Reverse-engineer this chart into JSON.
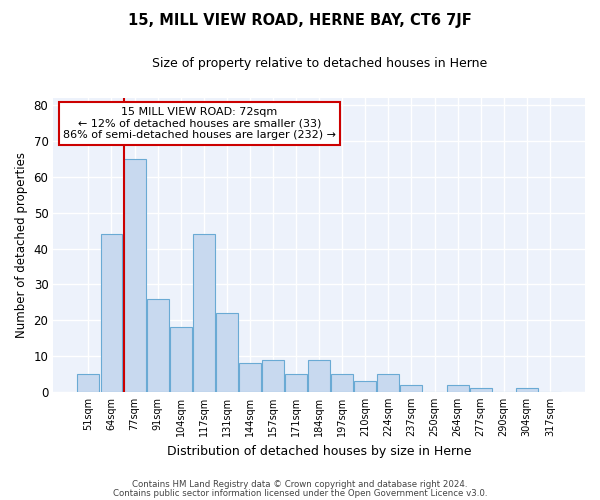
{
  "title": "15, MILL VIEW ROAD, HERNE BAY, CT6 7JF",
  "subtitle": "Size of property relative to detached houses in Herne",
  "xlabel": "Distribution of detached houses by size in Herne",
  "ylabel": "Number of detached properties",
  "bar_labels": [
    "51sqm",
    "64sqm",
    "77sqm",
    "91sqm",
    "104sqm",
    "117sqm",
    "131sqm",
    "144sqm",
    "157sqm",
    "171sqm",
    "184sqm",
    "197sqm",
    "210sqm",
    "224sqm",
    "237sqm",
    "250sqm",
    "264sqm",
    "277sqm",
    "290sqm",
    "304sqm",
    "317sqm"
  ],
  "bar_heights": [
    5,
    44,
    65,
    26,
    18,
    44,
    22,
    8,
    9,
    5,
    9,
    5,
    3,
    5,
    2,
    0,
    2,
    1,
    0,
    1,
    0
  ],
  "bar_color": "#c8d9ef",
  "bar_edge_color": "#6aaad4",
  "vline_color": "#cc0000",
  "ylim": [
    0,
    82
  ],
  "yticks": [
    0,
    10,
    20,
    30,
    40,
    50,
    60,
    70,
    80
  ],
  "annotation_title": "15 MILL VIEW ROAD: 72sqm",
  "annotation_line1": "← 12% of detached houses are smaller (33)",
  "annotation_line2": "86% of semi-detached houses are larger (232) →",
  "annotation_box_color": "#ffffff",
  "annotation_box_edge": "#cc0000",
  "footer1": "Contains HM Land Registry data © Crown copyright and database right 2024.",
  "footer2": "Contains public sector information licensed under the Open Government Licence v3.0.",
  "bg_color": "#edf2fb"
}
